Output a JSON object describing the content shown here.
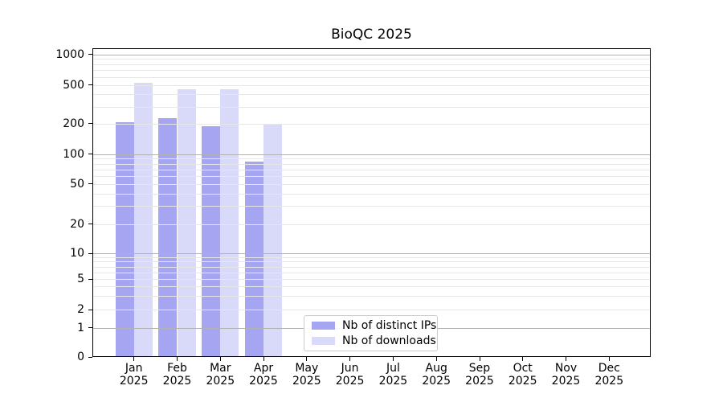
{
  "chart_data": {
    "type": "bar",
    "title": "BioQC 2025",
    "categories": [
      "Jan 2025",
      "Feb 2025",
      "Mar 2025",
      "Apr 2025",
      "May 2025",
      "Jun 2025",
      "Jul 2025",
      "Aug 2025",
      "Sep 2025",
      "Oct 2025",
      "Nov 2025",
      "Dec 2025"
    ],
    "series": [
      {
        "name": "Nb of distinct IPs",
        "color": "#a5a5f1",
        "values": [
          205,
          226,
          188,
          84,
          0,
          0,
          0,
          0,
          0,
          0,
          0,
          0
        ]
      },
      {
        "name": "Nb of downloads",
        "color": "#d9d9f9",
        "values": [
          530,
          455,
          453,
          198,
          0,
          0,
          0,
          0,
          0,
          0,
          0,
          0
        ]
      }
    ],
    "xlabel": "",
    "ylabel": "",
    "yscale": "symlog",
    "yticks": [
      0,
      1,
      2,
      5,
      10,
      20,
      50,
      100,
      200,
      500,
      1000
    ],
    "ylim": [
      0,
      1150
    ],
    "grid": "horizontal major (decades, darker) + minor (lighter)",
    "legend_position": "lower center"
  },
  "colors": {
    "background": "#ffffff",
    "bar_distinct_ips": "#a5a5f1",
    "bar_downloads": "#d9d9f9",
    "major_gridline": "#b2b2b2",
    "minor_gridline": "#e7e7e7",
    "axis_line": "#000000",
    "text": "#000000",
    "legend_border": "#cccccc"
  }
}
